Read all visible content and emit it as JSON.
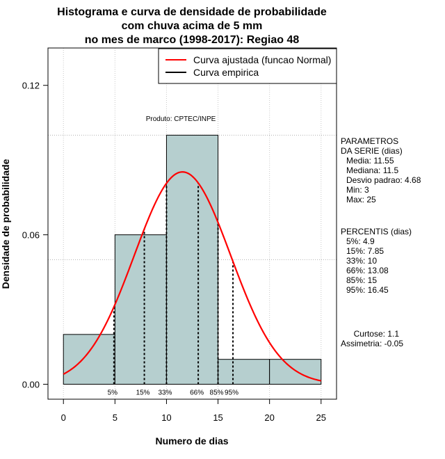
{
  "chart_data": {
    "type": "bar",
    "title_lines": [
      "Histograma e curva de densidade de probabilidade",
      "com chuva acima de 5 mm",
      "no mes de marco (1998-2017): Regiao 48"
    ],
    "xlabel": "Numero de dias",
    "ylabel": "Densidade de probabilidade",
    "xlim": [
      -1.5,
      26.5
    ],
    "ylim": [
      -0.006,
      0.135
    ],
    "x_ticks": [
      0,
      5,
      10,
      15,
      20,
      25
    ],
    "y_ticks": [
      0.0,
      0.06,
      0.12
    ],
    "y_tick_labels": [
      "0.00",
      "0.06",
      "0.12"
    ],
    "bins": [
      {
        "x0": 0,
        "x1": 5,
        "density": 0.02
      },
      {
        "x0": 5,
        "x1": 10,
        "density": 0.06
      },
      {
        "x0": 10,
        "x1": 15,
        "density": 0.1
      },
      {
        "x0": 15,
        "x1": 20,
        "density": 0.01
      },
      {
        "x0": 20,
        "x1": 25,
        "density": 0.01
      }
    ],
    "bin_fill": "#b6cfcf",
    "curve_color": "#ff0000",
    "normal_fit": {
      "mean": 11.55,
      "sd": 4.68,
      "x_from": 0,
      "x_to": 25
    },
    "hgrid": [
      0.05,
      0.1
    ],
    "percentiles": [
      {
        "label": "5%",
        "value": 4.9
      },
      {
        "label": "15%",
        "value": 7.85
      },
      {
        "label": "33%",
        "value": 10
      },
      {
        "label": "66%",
        "value": 13.08
      },
      {
        "label": "85%",
        "value": 15
      },
      {
        "label": "95%",
        "value": 16.45
      }
    ],
    "product_label": "Produto: CPTEC/INPE",
    "legend": {
      "position": "top-right",
      "entries": [
        {
          "label": "Curva ajustada (funcao Normal)",
          "color": "#ff0000"
        },
        {
          "label": "Curva empirica",
          "color": "#000000"
        }
      ]
    },
    "side_panel": {
      "params_lines": [
        "PARAMETROS",
        "DA SERIE (dias)",
        "Media: 11.55",
        "Mediana: 11.5",
        "Desvio padrao: 4.68",
        "Min: 3",
        "Max: 25"
      ],
      "percentis_lines": [
        "PERCENTIS (dias)",
        "5%: 4.9",
        "15%: 7.85",
        "33%: 10",
        "66%: 13.08",
        "85%: 15",
        "95%: 16.45"
      ],
      "curtose": "Curtose: 1.1",
      "assimetria": "Assimetria: -0.05"
    }
  }
}
